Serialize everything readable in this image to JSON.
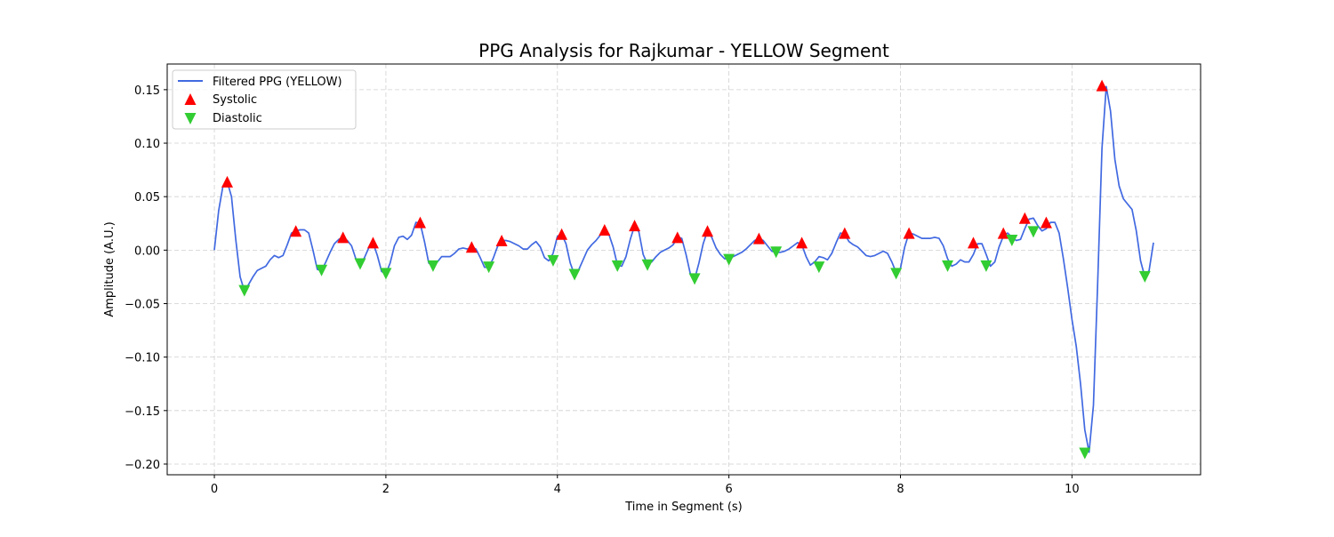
{
  "chart_data": {
    "type": "line",
    "title": "PPG Analysis for Rajkumar - YELLOW Segment",
    "xlabel": "Time in Segment (s)",
    "ylabel": "Amplitude (A.U.)",
    "xlim": [
      -0.55,
      11.5
    ],
    "ylim": [
      -0.21,
      0.174
    ],
    "x_ticks": [
      0,
      2,
      4,
      6,
      8,
      10
    ],
    "x_tick_labels": [
      "0",
      "2",
      "4",
      "6",
      "8",
      "10"
    ],
    "y_ticks": [
      -0.2,
      -0.15,
      -0.1,
      -0.05,
      0.0,
      0.05,
      0.1,
      0.15
    ],
    "y_tick_labels": [
      "−0.20",
      "−0.15",
      "−0.10",
      "−0.05",
      "0.00",
      "0.05",
      "0.10",
      "0.15"
    ],
    "grid": true,
    "legend_position": "top-left",
    "series": [
      {
        "name": "Filtered PPG (YELLOW)",
        "color": "#4169e1",
        "marker": "line",
        "x": [
          0,
          0.05,
          0.1,
          0.15,
          0.2,
          0.25,
          0.3,
          0.35,
          0.4,
          0.45,
          0.5,
          0.55,
          0.6,
          0.65,
          0.7,
          0.75,
          0.8,
          0.85,
          0.9,
          0.95,
          1.0,
          1.05,
          1.1,
          1.15,
          1.2,
          1.25,
          1.3,
          1.35,
          1.4,
          1.45,
          1.5,
          1.55,
          1.6,
          1.65,
          1.7,
          1.75,
          1.8,
          1.85,
          1.9,
          1.95,
          2.0,
          2.05,
          2.1,
          2.15,
          2.2,
          2.25,
          2.3,
          2.35,
          2.4,
          2.45,
          2.5,
          2.55,
          2.6,
          2.65,
          2.7,
          2.75,
          2.8,
          2.85,
          2.9,
          2.95,
          3.0,
          3.05,
          3.1,
          3.15,
          3.2,
          3.25,
          3.3,
          3.35,
          3.4,
          3.45,
          3.5,
          3.55,
          3.6,
          3.65,
          3.7,
          3.75,
          3.8,
          3.85,
          3.9,
          3.95,
          4.0,
          4.05,
          4.1,
          4.15,
          4.2,
          4.25,
          4.3,
          4.35,
          4.4,
          4.45,
          4.5,
          4.55,
          4.6,
          4.65,
          4.7,
          4.75,
          4.8,
          4.85,
          4.9,
          4.95,
          5.0,
          5.05,
          5.1,
          5.15,
          5.2,
          5.25,
          5.3,
          5.35,
          5.4,
          5.45,
          5.5,
          5.55,
          5.6,
          5.65,
          5.7,
          5.75,
          5.8,
          5.85,
          5.9,
          5.95,
          6.0,
          6.05,
          6.1,
          6.15,
          6.2,
          6.25,
          6.3,
          6.35,
          6.4,
          6.45,
          6.5,
          6.55,
          6.6,
          6.65,
          6.7,
          6.75,
          6.8,
          6.85,
          6.9,
          6.95,
          7.0,
          7.05,
          7.1,
          7.15,
          7.2,
          7.25,
          7.3,
          7.35,
          7.4,
          7.45,
          7.5,
          7.55,
          7.6,
          7.65,
          7.7,
          7.75,
          7.8,
          7.85,
          7.9,
          7.95,
          8.0,
          8.05,
          8.1,
          8.15,
          8.2,
          8.25,
          8.3,
          8.35,
          8.4,
          8.45,
          8.5,
          8.55,
          8.6,
          8.65,
          8.7,
          8.75,
          8.8,
          8.85,
          8.9,
          8.95,
          9.0,
          9.05,
          9.1,
          9.15,
          9.2,
          9.25,
          9.3,
          9.35,
          9.4,
          9.45,
          9.5,
          9.55,
          9.6,
          9.65,
          9.7,
          9.75,
          9.8,
          9.85,
          9.9,
          9.95,
          10.0,
          10.05,
          10.1,
          10.15,
          10.2,
          10.25,
          10.3,
          10.35,
          10.4,
          10.45,
          10.5,
          10.55,
          10.6,
          10.65,
          10.7,
          10.75,
          10.8,
          10.85,
          10.9,
          10.95
        ],
        "y": [
          0.0,
          0.037,
          0.06,
          0.064,
          0.05,
          0.01,
          -0.025,
          -0.038,
          -0.032,
          -0.025,
          -0.019,
          -0.017,
          -0.015,
          -0.009,
          -0.005,
          -0.007,
          -0.005,
          0.005,
          0.016,
          0.018,
          0.019,
          0.019,
          0.016,
          0.0,
          -0.018,
          -0.019,
          -0.011,
          -0.002,
          0.006,
          0.01,
          0.012,
          0.009,
          0.004,
          -0.008,
          -0.013,
          -0.007,
          0.002,
          0.007,
          -0.005,
          -0.02,
          -0.022,
          -0.012,
          0.004,
          0.012,
          0.013,
          0.01,
          0.014,
          0.026,
          0.025,
          0.008,
          -0.012,
          -0.015,
          -0.011,
          -0.006,
          -0.006,
          -0.006,
          -0.003,
          0.001,
          0.002,
          0.001,
          0.003,
          0.001,
          -0.007,
          -0.016,
          -0.016,
          -0.008,
          0.003,
          0.009,
          0.009,
          0.008,
          0.006,
          0.004,
          0.001,
          0.001,
          0.005,
          0.008,
          0.003,
          -0.007,
          -0.01,
          -0.003,
          0.013,
          0.015,
          0.006,
          -0.012,
          -0.023,
          -0.018,
          -0.009,
          0.0,
          0.005,
          0.009,
          0.014,
          0.019,
          0.015,
          0.003,
          -0.014,
          -0.015,
          -0.006,
          0.01,
          0.023,
          0.017,
          -0.004,
          -0.013,
          -0.011,
          -0.006,
          -0.002,
          0.0,
          0.002,
          0.005,
          0.012,
          0.011,
          -0.004,
          -0.022,
          -0.027,
          -0.012,
          0.006,
          0.018,
          0.012,
          0.002,
          -0.004,
          -0.008,
          -0.008,
          -0.006,
          -0.004,
          -0.002,
          0.001,
          0.005,
          0.009,
          0.011,
          0.009,
          0.004,
          -0.001,
          -0.002,
          -0.002,
          -0.001,
          0.001,
          0.004,
          0.007,
          0.005,
          -0.006,
          -0.014,
          -0.011,
          -0.006,
          -0.007,
          -0.009,
          -0.003,
          0.007,
          0.016,
          0.015,
          0.008,
          0.005,
          0.003,
          -0.001,
          -0.005,
          -0.006,
          -0.005,
          -0.003,
          -0.001,
          -0.003,
          -0.011,
          -0.021,
          -0.017,
          0.003,
          0.016,
          0.015,
          0.013,
          0.011,
          0.011,
          0.011,
          0.012,
          0.011,
          0.004,
          -0.008,
          -0.015,
          -0.013,
          -0.009,
          -0.011,
          -0.011,
          -0.004,
          0.006,
          0.006,
          -0.004,
          -0.015,
          -0.011,
          0.003,
          0.013,
          0.016,
          0.012,
          0.009,
          0.01,
          0.02,
          0.029,
          0.03,
          0.023,
          0.018,
          0.02,
          0.026,
          0.026,
          0.016,
          -0.008,
          -0.035,
          -0.065,
          -0.09,
          -0.125,
          -0.168,
          -0.189,
          -0.145,
          -0.03,
          0.095,
          0.153,
          0.13,
          0.085,
          0.06,
          0.048,
          0.043,
          0.038,
          0.018,
          -0.01,
          -0.025,
          -0.019,
          0.007
        ]
      },
      {
        "name": "Systolic",
        "color": "#ff0000",
        "marker": "triangle-up",
        "x": [
          0.15,
          0.95,
          1.5,
          1.85,
          2.4,
          3.0,
          3.35,
          4.05,
          4.55,
          4.9,
          5.4,
          5.75,
          6.35,
          6.85,
          7.35,
          8.1,
          8.85,
          9.2,
          9.45,
          9.7,
          10.35
        ],
        "y": [
          0.064,
          0.018,
          0.012,
          0.007,
          0.026,
          0.003,
          0.009,
          0.015,
          0.019,
          0.023,
          0.012,
          0.018,
          0.011,
          0.007,
          0.016,
          0.016,
          0.007,
          0.016,
          0.03,
          0.026,
          0.154
        ]
      },
      {
        "name": "Diastolic",
        "color": "#32cd32",
        "marker": "triangle-down",
        "x": [
          0.35,
          1.25,
          1.7,
          2.0,
          2.55,
          3.2,
          3.95,
          4.2,
          4.7,
          5.05,
          5.6,
          6.0,
          6.55,
          7.05,
          7.95,
          8.55,
          9.0,
          9.3,
          9.55,
          10.15,
          10.85
        ],
        "y": [
          -0.038,
          -0.019,
          -0.013,
          -0.022,
          -0.015,
          -0.016,
          -0.01,
          -0.023,
          -0.015,
          -0.014,
          -0.027,
          -0.009,
          -0.002,
          -0.016,
          -0.022,
          -0.015,
          -0.015,
          0.009,
          0.017,
          -0.19,
          -0.025
        ]
      }
    ]
  }
}
